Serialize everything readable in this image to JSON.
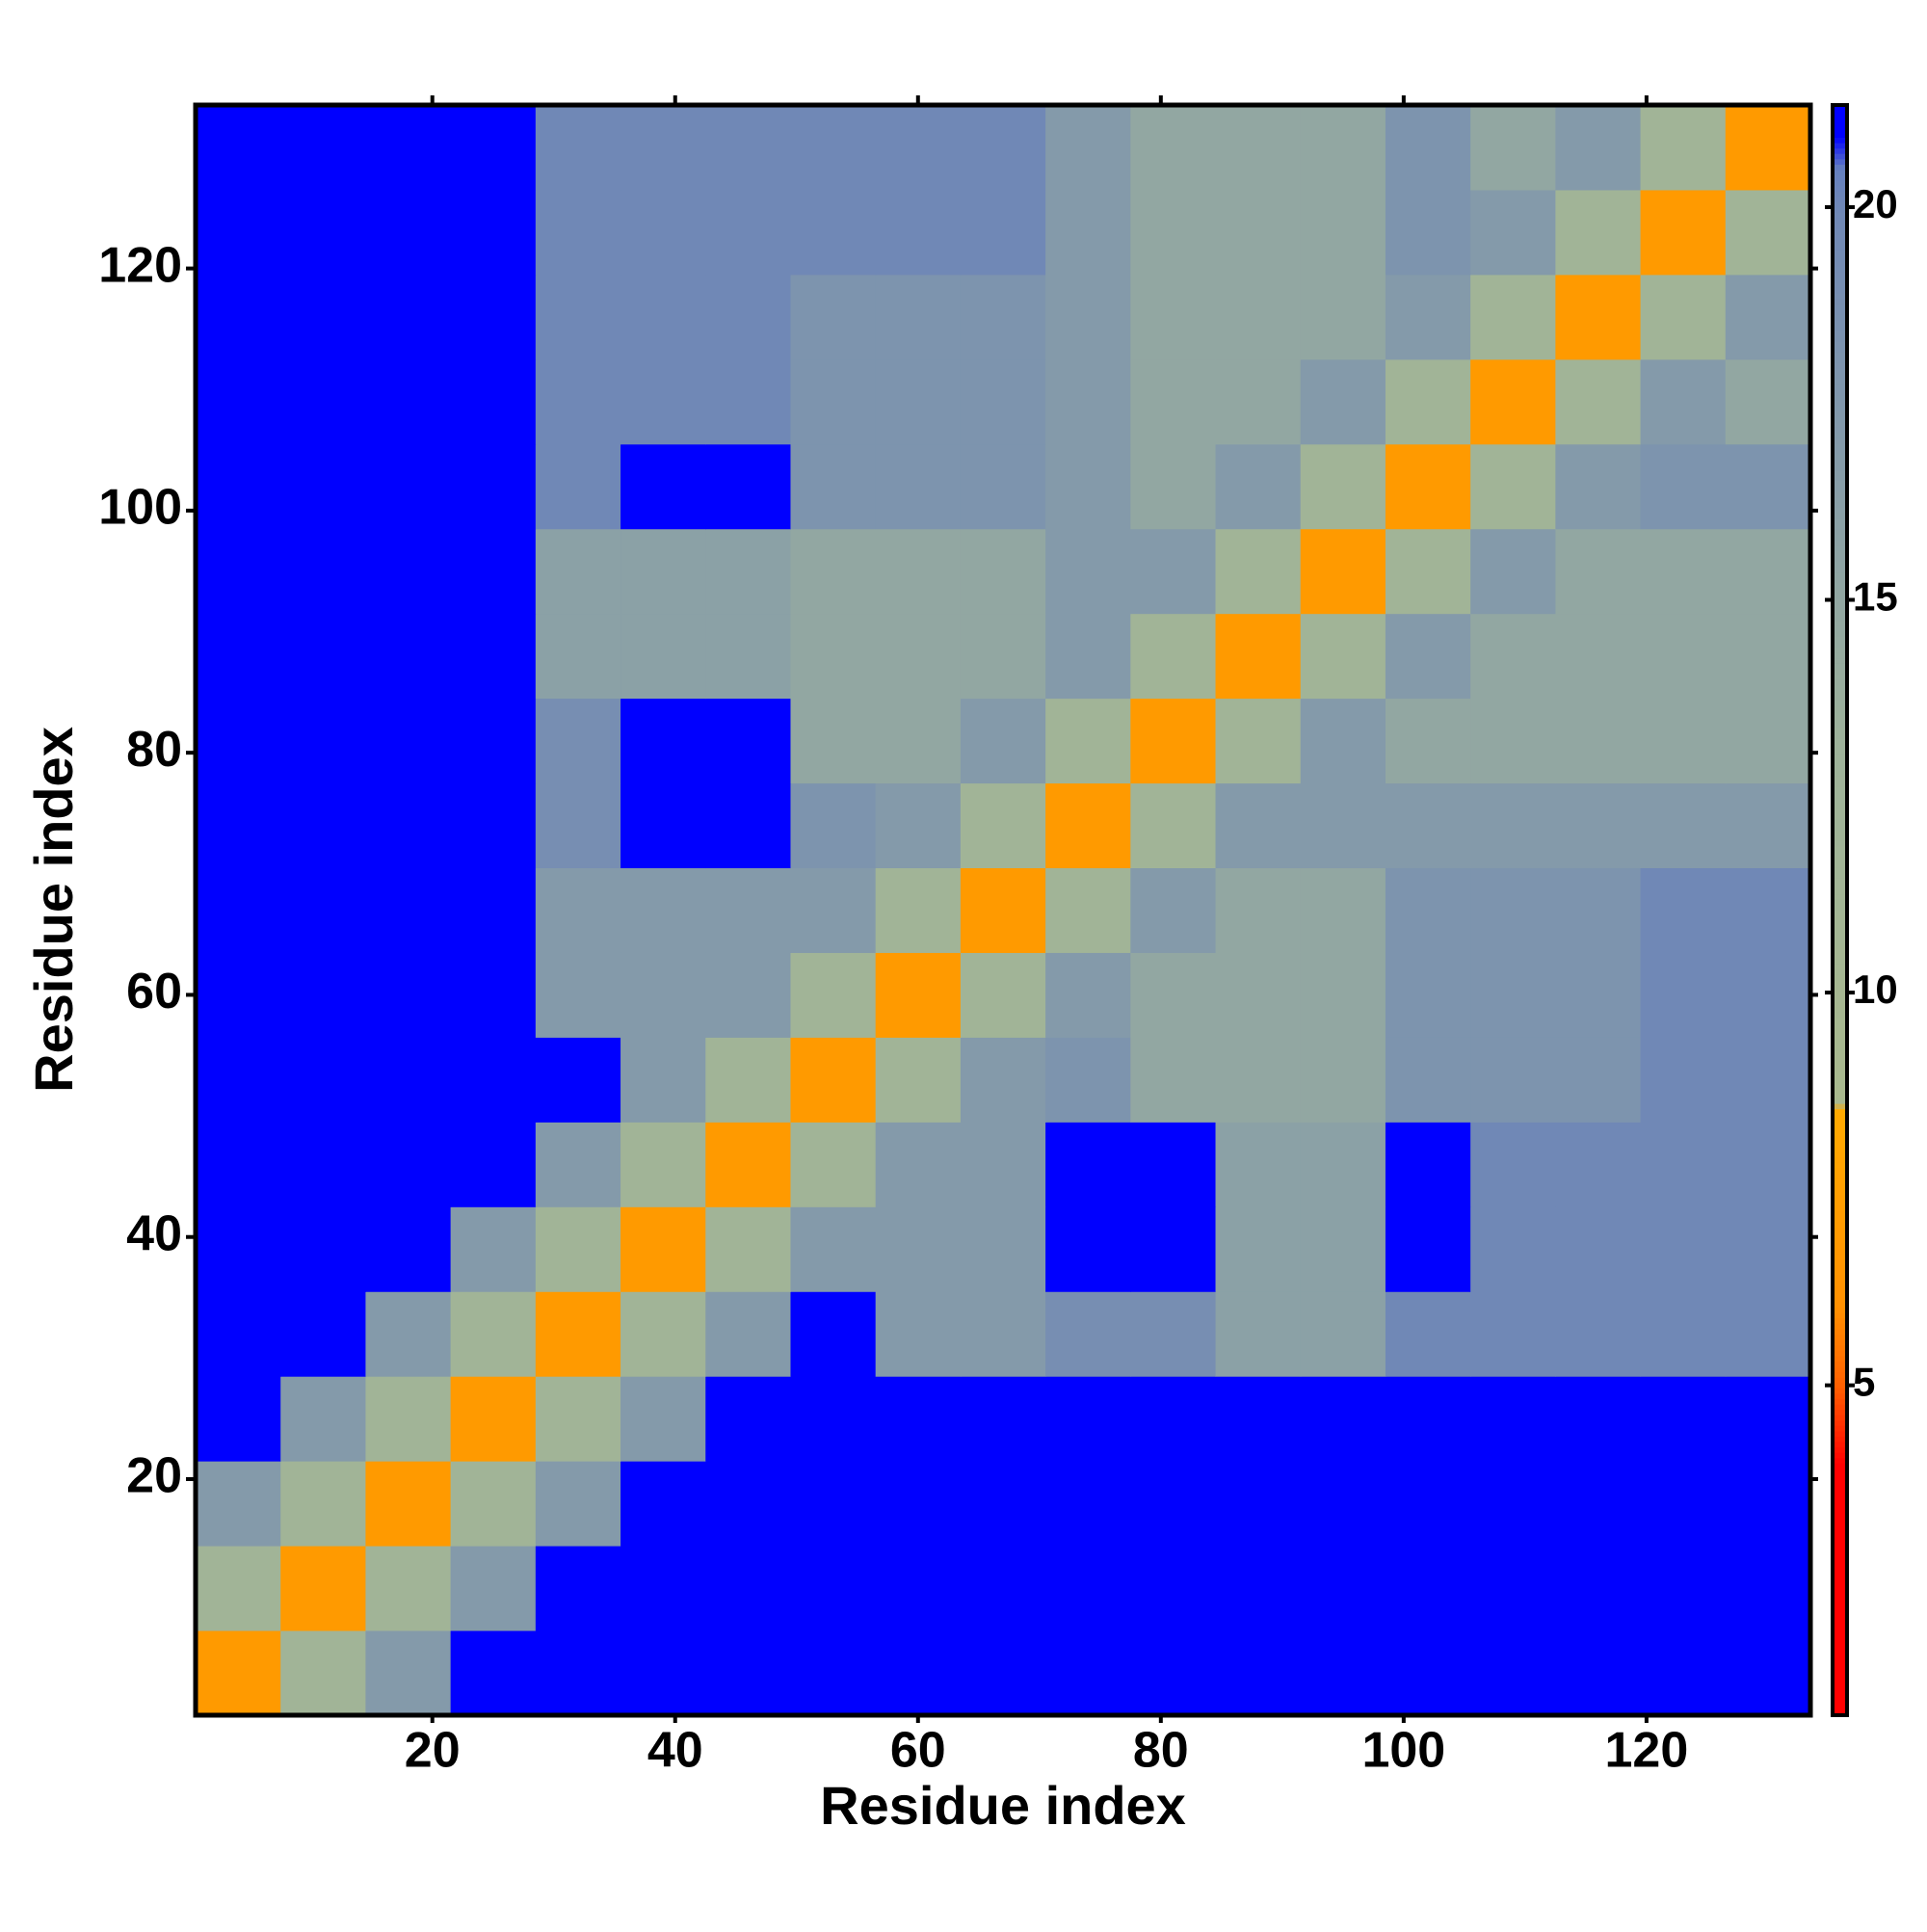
{
  "chart_data": {
    "type": "heatmap",
    "xlabel": "Residue index",
    "ylabel": "Residue index",
    "x_bins": [
      0.5,
      7.5,
      14.5,
      21.5,
      28.5,
      35.5,
      42.5,
      49.5,
      56.5,
      63.5,
      70.5,
      77.5,
      84.5,
      91.5,
      98.5,
      105.5,
      112.5,
      119.5,
      126.5,
      133.5
    ],
    "y_bins": [
      0.5,
      7.5,
      14.5,
      21.5,
      28.5,
      35.5,
      42.5,
      49.5,
      56.5,
      63.5,
      70.5,
      77.5,
      84.5,
      91.5,
      98.5,
      105.5,
      112.5,
      119.5,
      126.5,
      133.5
    ],
    "z": [
      [
        7,
        12,
        17,
        21,
        21,
        21,
        21,
        21,
        21,
        21,
        21,
        21,
        21,
        21,
        21,
        21,
        21,
        21,
        21
      ],
      [
        12,
        7,
        12,
        17,
        21,
        21,
        21,
        21,
        21,
        21,
        21,
        21,
        21,
        21,
        21,
        21,
        21,
        21,
        21
      ],
      [
        17,
        12,
        7,
        12,
        17,
        21,
        21,
        21,
        21,
        21,
        21,
        21,
        21,
        21,
        21,
        21,
        21,
        21,
        21
      ],
      [
        21,
        17,
        12,
        7,
        12,
        17,
        21,
        21,
        21,
        21,
        21,
        21,
        21,
        21,
        21,
        21,
        21,
        21,
        21
      ],
      [
        21,
        21,
        17,
        12,
        7,
        12,
        17,
        21,
        17,
        17,
        19,
        19,
        16,
        16,
        20,
        20,
        20,
        20,
        20
      ],
      [
        21,
        21,
        21,
        17,
        12,
        7,
        12,
        17,
        17,
        17,
        21,
        21,
        16,
        16,
        21,
        20,
        20,
        20,
        20
      ],
      [
        21,
        21,
        21,
        21,
        17,
        12,
        7,
        12,
        17,
        17,
        21,
        21,
        16,
        16,
        21,
        20,
        20,
        20,
        20
      ],
      [
        21,
        21,
        21,
        21,
        21,
        17,
        12,
        7,
        12,
        17,
        18,
        15,
        15,
        15,
        18,
        18,
        18,
        20,
        20
      ],
      [
        21,
        21,
        21,
        21,
        17,
        17,
        17,
        12,
        7,
        12,
        17,
        15,
        15,
        15,
        18,
        18,
        18,
        20,
        20
      ],
      [
        21,
        21,
        21,
        21,
        17,
        17,
        17,
        17,
        12,
        7,
        12,
        17,
        15,
        15,
        18,
        18,
        18,
        20,
        20
      ],
      [
        21,
        21,
        21,
        21,
        19,
        21,
        21,
        18,
        17,
        12,
        7,
        12,
        17,
        17,
        17,
        17,
        17,
        17,
        17
      ],
      [
        21,
        21,
        21,
        21,
        19,
        21,
        21,
        15,
        15,
        17,
        12,
        7,
        12,
        17,
        15,
        15,
        15,
        15,
        15
      ],
      [
        21,
        21,
        21,
        21,
        16,
        16,
        16,
        15,
        15,
        15,
        17,
        12,
        7,
        12,
        17,
        15,
        15,
        15,
        15
      ],
      [
        21,
        21,
        21,
        21,
        16,
        16,
        16,
        15,
        15,
        15,
        17,
        17,
        12,
        7,
        12,
        17,
        15,
        15,
        15
      ],
      [
        21,
        21,
        21,
        21,
        20,
        21,
        21,
        18,
        18,
        18,
        17,
        15,
        17,
        12,
        7,
        12,
        17,
        18,
        18
      ],
      [
        21,
        21,
        21,
        21,
        20,
        20,
        20,
        18,
        18,
        18,
        17,
        15,
        15,
        17,
        12,
        7,
        12,
        17,
        15
      ],
      [
        21,
        21,
        21,
        21,
        20,
        20,
        20,
        18,
        18,
        18,
        17,
        15,
        15,
        15,
        17,
        12,
        7,
        12,
        17
      ],
      [
        21,
        21,
        21,
        21,
        20,
        20,
        20,
        20,
        20,
        20,
        17,
        15,
        15,
        15,
        18,
        17,
        12,
        7,
        12
      ],
      [
        21,
        21,
        21,
        21,
        20,
        20,
        20,
        20,
        20,
        20,
        17,
        15,
        15,
        15,
        18,
        15,
        17,
        12,
        7
      ]
    ],
    "xlim": [
      0.5,
      133.5
    ],
    "ylim": [
      0.5,
      133.5
    ],
    "xticks": [
      20,
      40,
      60,
      80,
      100,
      120
    ],
    "yticks": [
      20,
      40,
      60,
      80,
      100,
      120
    ],
    "zlim": [
      0.8,
      21.3
    ],
    "zticks": [
      5,
      10,
      15,
      20
    ],
    "colorscale": [
      [
        0.8,
        "#ff0000"
      ],
      [
        4,
        "#ff0000"
      ],
      [
        5,
        "#ff6000"
      ],
      [
        6,
        "#ff9000"
      ],
      [
        8.5,
        "#ffaa00"
      ],
      [
        8.6,
        "#a9b98e"
      ],
      [
        13,
        "#9fb39a"
      ],
      [
        20,
        "#7088b6"
      ],
      [
        20.5,
        "#6580c0"
      ],
      [
        20.9,
        "#0000ff"
      ],
      [
        21.3,
        "#0000ff"
      ]
    ]
  }
}
